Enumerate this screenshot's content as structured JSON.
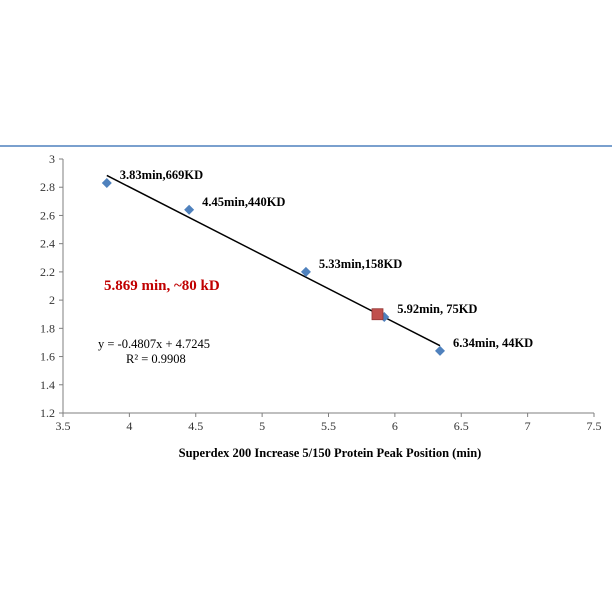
{
  "chart_data": {
    "type": "scatter",
    "title": "",
    "xlabel": "Superdex 200 Increase 5/150  Protein Peak Position (min)",
    "ylabel": "",
    "xlim": [
      3.5,
      7.5
    ],
    "ylim": [
      1.2,
      3.0
    ],
    "x_ticks": [
      "3.5",
      "4",
      "4.5",
      "5",
      "5.5",
      "6",
      "6.5",
      "7",
      "7.5"
    ],
    "y_ticks": [
      "1.2",
      "1.4",
      "1.6",
      "1.8",
      "2",
      "2.2",
      "2.4",
      "2.6",
      "2.8",
      "3"
    ],
    "grid": false,
    "series": [
      {
        "marker": "diamond",
        "color": "#4f81bd",
        "points": [
          {
            "x": 3.83,
            "y": 2.83,
            "label": "3.83min,669KD"
          },
          {
            "x": 4.45,
            "y": 2.64,
            "label": "4.45min,440KD"
          },
          {
            "x": 5.33,
            "y": 2.2,
            "label": "5.33min,158KD"
          },
          {
            "x": 5.92,
            "y": 1.88,
            "label": "5.92min, 75KD"
          },
          {
            "x": 6.34,
            "y": 1.64,
            "label": "6.34min, 44KD"
          }
        ]
      }
    ],
    "highlight_point": {
      "x": 5.869,
      "y": 1.9,
      "marker": "square",
      "color": "#c0504d"
    },
    "highlight_text": "5.869 min, ~80 kD",
    "highlight_color": "#c00000",
    "trendline": {
      "slope": -0.4807,
      "intercept": 4.7245,
      "x_range": [
        3.83,
        6.34
      ],
      "equation": "y = -0.4807x + 4.7245",
      "r_squared": "R² = 0.9908"
    }
  },
  "colors": {
    "top_rule": "#4f81bd",
    "axis": "#7f7f7f",
    "trendline": "#000000"
  }
}
